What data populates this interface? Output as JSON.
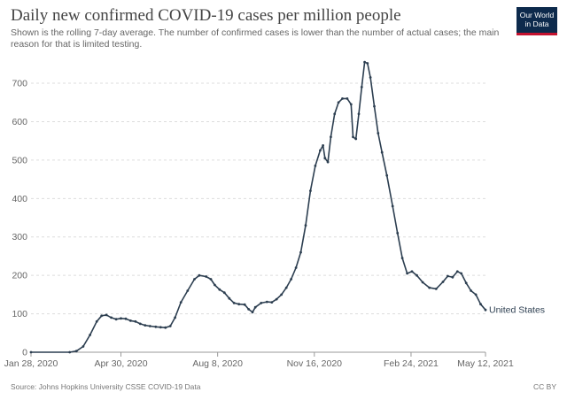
{
  "header": {
    "title": "Daily new confirmed COVID-19 cases per million people",
    "subtitle": "Shown is the rolling 7-day average. The number of confirmed cases is lower than the number of actual cases; the main reason for that is limited testing.",
    "logo_text": "Our World\nin Data",
    "logo_colors": {
      "background": "#0d2a4c",
      "stripe": "#c4122f"
    }
  },
  "footer": {
    "source": "Source: Johns Hopkins University CSSE COVID-19 Data",
    "license": "CC BY"
  },
  "chart_data": {
    "type": "line",
    "xlim": [
      "2020-01-28",
      "2021-05-12"
    ],
    "ylim": [
      0,
      760
    ],
    "x_ticks": [
      "2020-01-28",
      "2020-04-30",
      "2020-08-08",
      "2020-11-16",
      "2021-02-24",
      "2021-05-12"
    ],
    "x_tick_labels": [
      "Jan 28, 2020",
      "Apr 30, 2020",
      "Aug 8, 2020",
      "Nov 16, 2020",
      "Feb 24, 2021",
      "May 12, 2021"
    ],
    "y_ticks": [
      0,
      100,
      200,
      300,
      400,
      500,
      600,
      700
    ],
    "y_tick_labels": [
      "0",
      "100",
      "200",
      "300",
      "400",
      "500",
      "600",
      "700"
    ],
    "grid": "horizontal dashed",
    "series": [
      {
        "name": "United States",
        "color": "#2c3e50",
        "points": [
          [
            "2020-01-28",
            0
          ],
          [
            "2020-03-08",
            0
          ],
          [
            "2020-03-15",
            3
          ],
          [
            "2020-03-22",
            15
          ],
          [
            "2020-03-29",
            45
          ],
          [
            "2020-04-05",
            80
          ],
          [
            "2020-04-10",
            95
          ],
          [
            "2020-04-15",
            97
          ],
          [
            "2020-04-20",
            90
          ],
          [
            "2020-04-25",
            86
          ],
          [
            "2020-04-30",
            88
          ],
          [
            "2020-05-05",
            87
          ],
          [
            "2020-05-10",
            82
          ],
          [
            "2020-05-15",
            80
          ],
          [
            "2020-05-20",
            74
          ],
          [
            "2020-05-25",
            70
          ],
          [
            "2020-05-30",
            68
          ],
          [
            "2020-06-05",
            66
          ],
          [
            "2020-06-10",
            65
          ],
          [
            "2020-06-15",
            64
          ],
          [
            "2020-06-20",
            68
          ],
          [
            "2020-06-25",
            90
          ],
          [
            "2020-07-01",
            130
          ],
          [
            "2020-07-08",
            160
          ],
          [
            "2020-07-15",
            190
          ],
          [
            "2020-07-20",
            200
          ],
          [
            "2020-07-27",
            197
          ],
          [
            "2020-08-01",
            190
          ],
          [
            "2020-08-05",
            175
          ],
          [
            "2020-08-10",
            163
          ],
          [
            "2020-08-15",
            155
          ],
          [
            "2020-08-20",
            140
          ],
          [
            "2020-08-25",
            128
          ],
          [
            "2020-08-30",
            125
          ],
          [
            "2020-09-05",
            124
          ],
          [
            "2020-09-09",
            112
          ],
          [
            "2020-09-13",
            104
          ],
          [
            "2020-09-16",
            117
          ],
          [
            "2020-09-22",
            128
          ],
          [
            "2020-09-28",
            131
          ],
          [
            "2020-10-03",
            130
          ],
          [
            "2020-10-08",
            138
          ],
          [
            "2020-10-13",
            150
          ],
          [
            "2020-10-18",
            168
          ],
          [
            "2020-10-23",
            190
          ],
          [
            "2020-10-28",
            220
          ],
          [
            "2020-11-02",
            260
          ],
          [
            "2020-11-07",
            330
          ],
          [
            "2020-11-12",
            420
          ],
          [
            "2020-11-17",
            485
          ],
          [
            "2020-11-22",
            525
          ],
          [
            "2020-11-25",
            538
          ],
          [
            "2020-11-27",
            505
          ],
          [
            "2020-11-30",
            495
          ],
          [
            "2020-12-03",
            560
          ],
          [
            "2020-12-07",
            620
          ],
          [
            "2020-12-11",
            650
          ],
          [
            "2020-12-15",
            660
          ],
          [
            "2020-12-20",
            660
          ],
          [
            "2020-12-24",
            645
          ],
          [
            "2020-12-26",
            560
          ],
          [
            "2020-12-29",
            555
          ],
          [
            "2021-01-01",
            620
          ],
          [
            "2021-01-04",
            690
          ],
          [
            "2021-01-07",
            755
          ],
          [
            "2021-01-10",
            752
          ],
          [
            "2021-01-13",
            715
          ],
          [
            "2021-01-17",
            640
          ],
          [
            "2021-01-21",
            570
          ],
          [
            "2021-01-25",
            520
          ],
          [
            "2021-01-30",
            460
          ],
          [
            "2021-02-05",
            380
          ],
          [
            "2021-02-10",
            310
          ],
          [
            "2021-02-15",
            245
          ],
          [
            "2021-02-20",
            205
          ],
          [
            "2021-02-25",
            210
          ],
          [
            "2021-03-02",
            200
          ],
          [
            "2021-03-08",
            182
          ],
          [
            "2021-03-15",
            168
          ],
          [
            "2021-03-22",
            165
          ],
          [
            "2021-03-29",
            183
          ],
          [
            "2021-04-03",
            198
          ],
          [
            "2021-04-08",
            195
          ],
          [
            "2021-04-13",
            210
          ],
          [
            "2021-04-17",
            205
          ],
          [
            "2021-04-22",
            180
          ],
          [
            "2021-04-27",
            160
          ],
          [
            "2021-05-02",
            150
          ],
          [
            "2021-05-07",
            125
          ],
          [
            "2021-05-12",
            110
          ]
        ]
      }
    ]
  }
}
